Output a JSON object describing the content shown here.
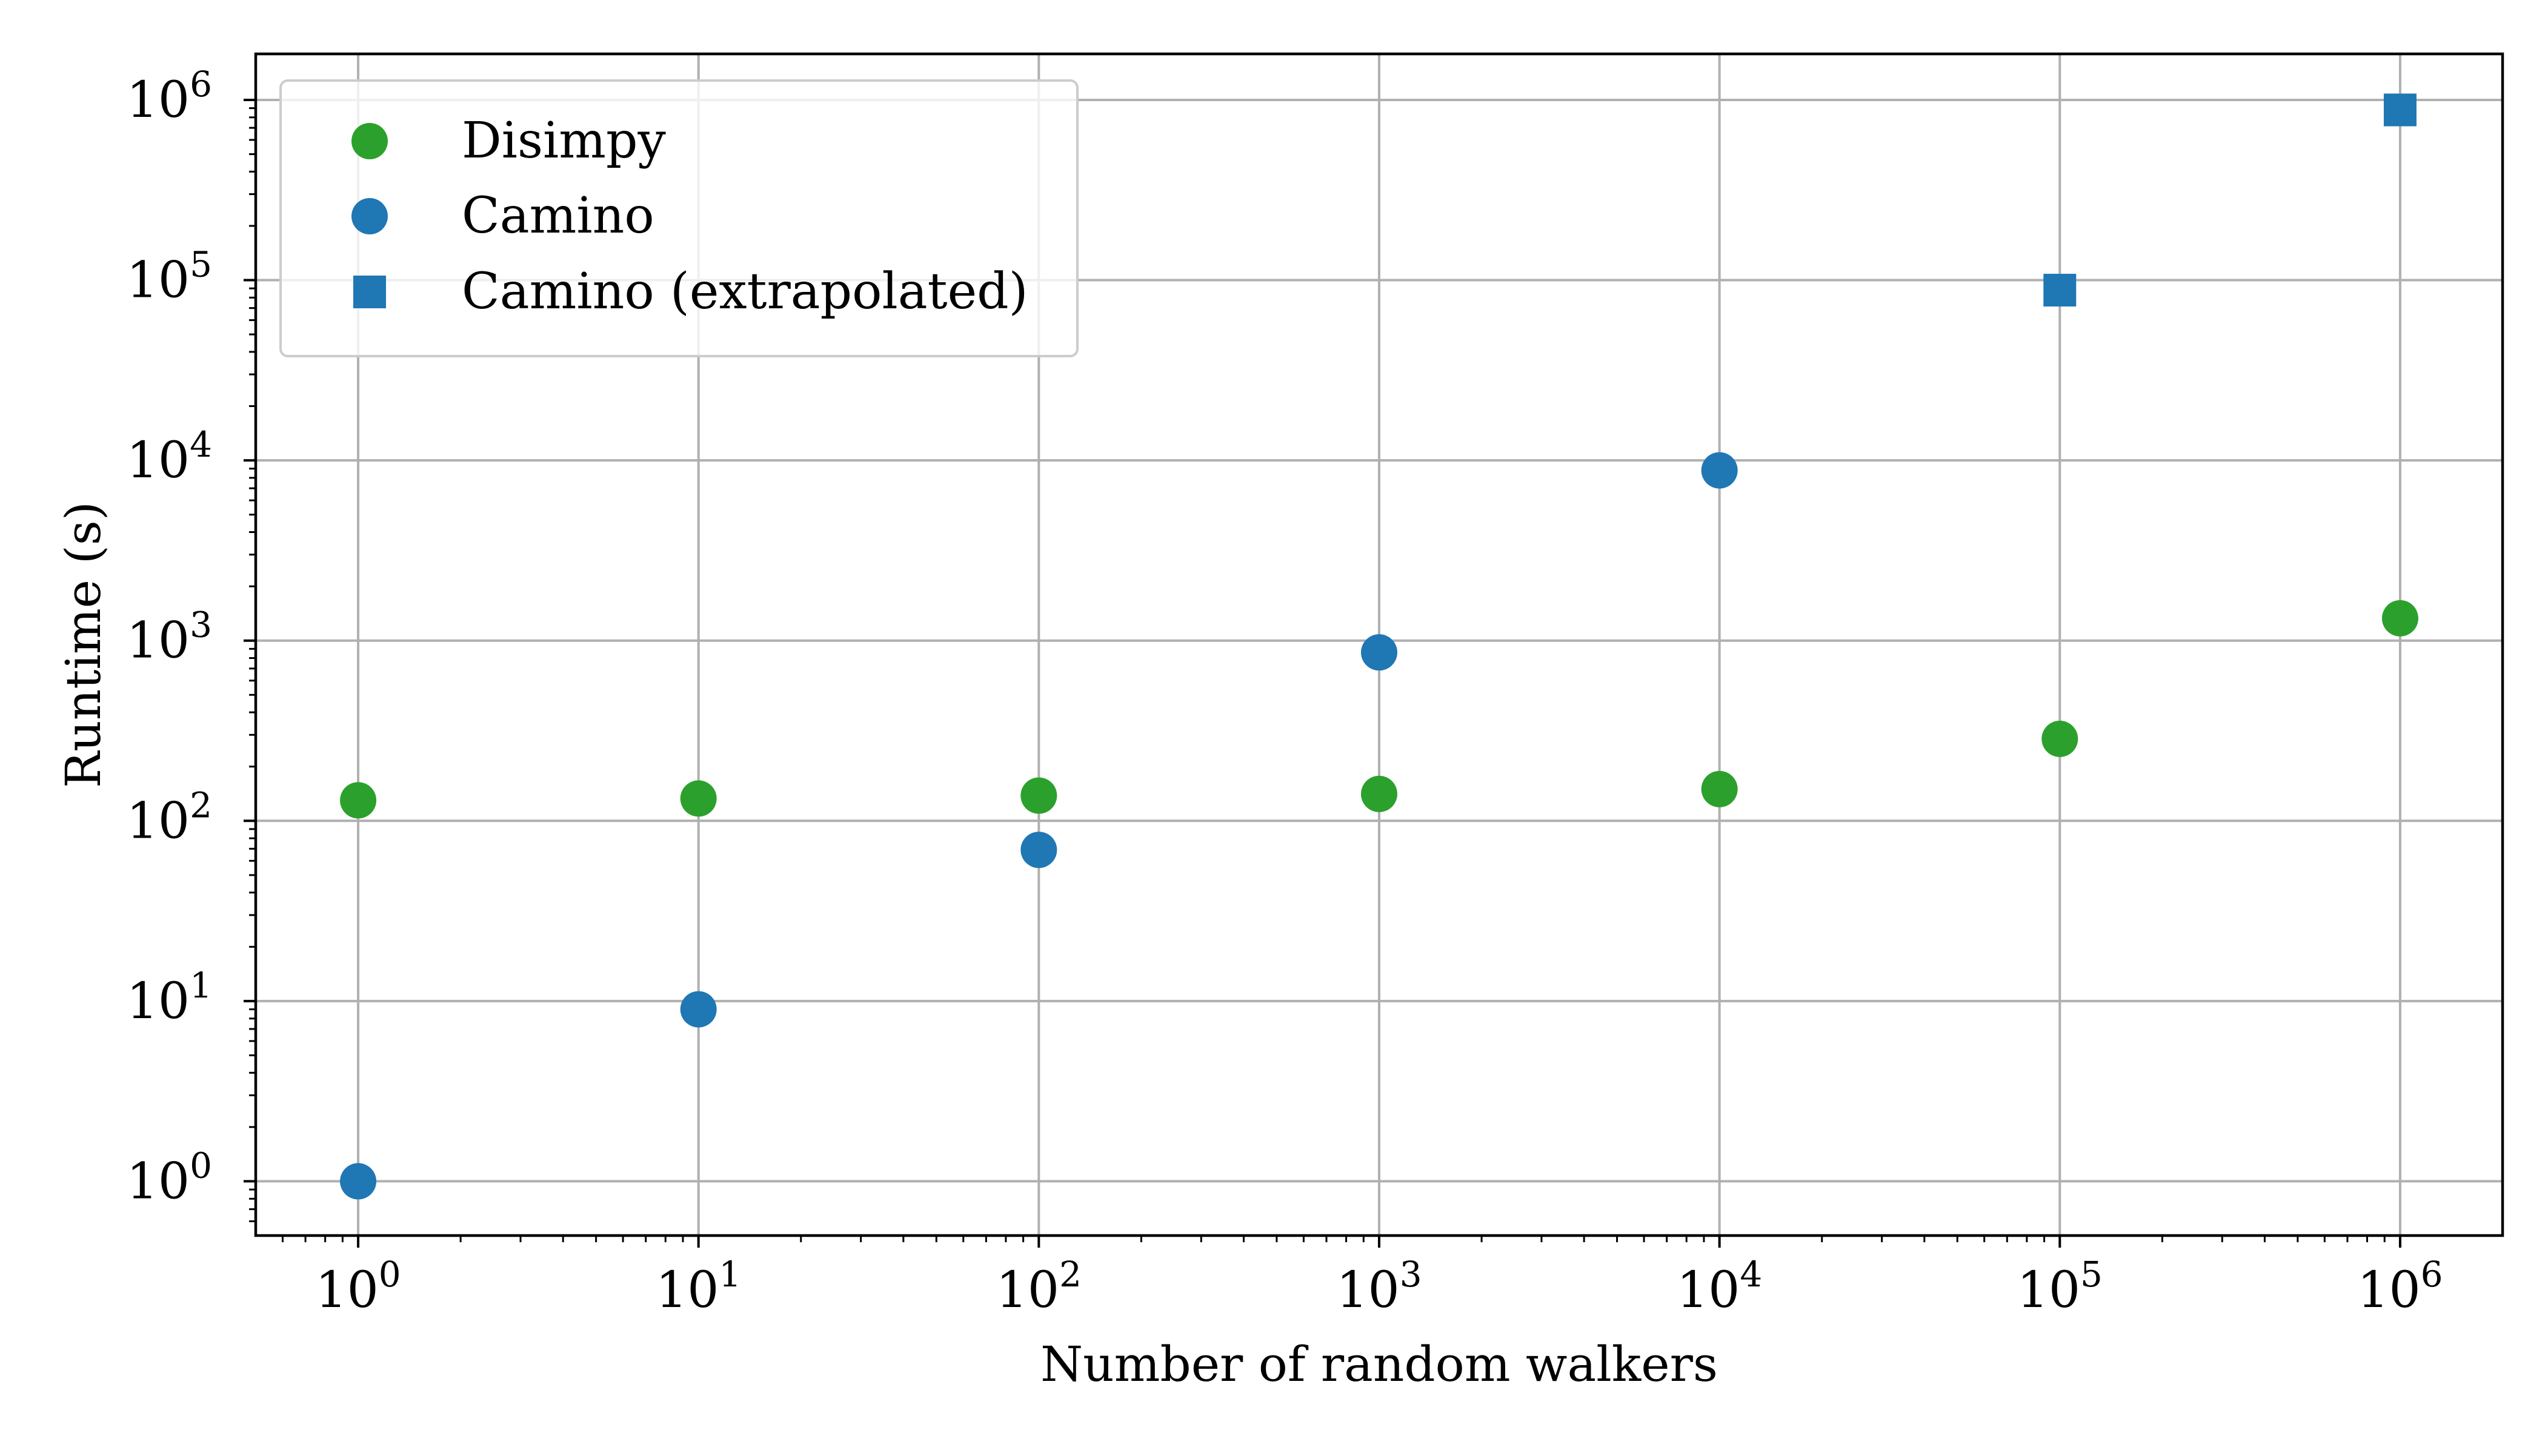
{
  "chart_data": {
    "type": "scatter",
    "title": "",
    "xlabel": "Number of random walkers",
    "ylabel": "Runtime (s)",
    "xscale": "log",
    "yscale": "log",
    "xlim": [
      0.5,
      2000000
    ],
    "ylim": [
      0.5,
      1800000
    ],
    "grid": true,
    "legend_position": "top-left",
    "x_ticks": [
      {
        "value": 1,
        "base": "10",
        "exp": "0"
      },
      {
        "value": 10,
        "base": "10",
        "exp": "1"
      },
      {
        "value": 100,
        "base": "10",
        "exp": "2"
      },
      {
        "value": 1000,
        "base": "10",
        "exp": "3"
      },
      {
        "value": 10000,
        "base": "10",
        "exp": "4"
      },
      {
        "value": 100000,
        "base": "10",
        "exp": "5"
      },
      {
        "value": 1000000,
        "base": "10",
        "exp": "6"
      }
    ],
    "y_ticks": [
      {
        "value": 1,
        "base": "10",
        "exp": "0"
      },
      {
        "value": 10,
        "base": "10",
        "exp": "1"
      },
      {
        "value": 100,
        "base": "10",
        "exp": "2"
      },
      {
        "value": 1000,
        "base": "10",
        "exp": "3"
      },
      {
        "value": 10000,
        "base": "10",
        "exp": "4"
      },
      {
        "value": 100000,
        "base": "10",
        "exp": "5"
      },
      {
        "value": 1000000,
        "base": "10",
        "exp": "6"
      }
    ],
    "series": [
      {
        "name": "Disimpy",
        "marker": "circle",
        "color": "#2ca02c",
        "x": [
          1,
          10,
          100,
          1000,
          10000,
          100000,
          1000000
        ],
        "y": [
          130,
          133,
          138,
          141,
          150,
          285,
          1330
        ]
      },
      {
        "name": "Camino",
        "marker": "circle",
        "color": "#1f77b4",
        "x": [
          1,
          10,
          100,
          1000,
          10000
        ],
        "y": [
          1,
          9,
          69,
          860,
          8800
        ]
      },
      {
        "name": "Camino (extrapolated)",
        "marker": "square",
        "color": "#1f77b4",
        "x": [
          100000,
          1000000
        ],
        "y": [
          88000,
          880000
        ]
      }
    ]
  }
}
